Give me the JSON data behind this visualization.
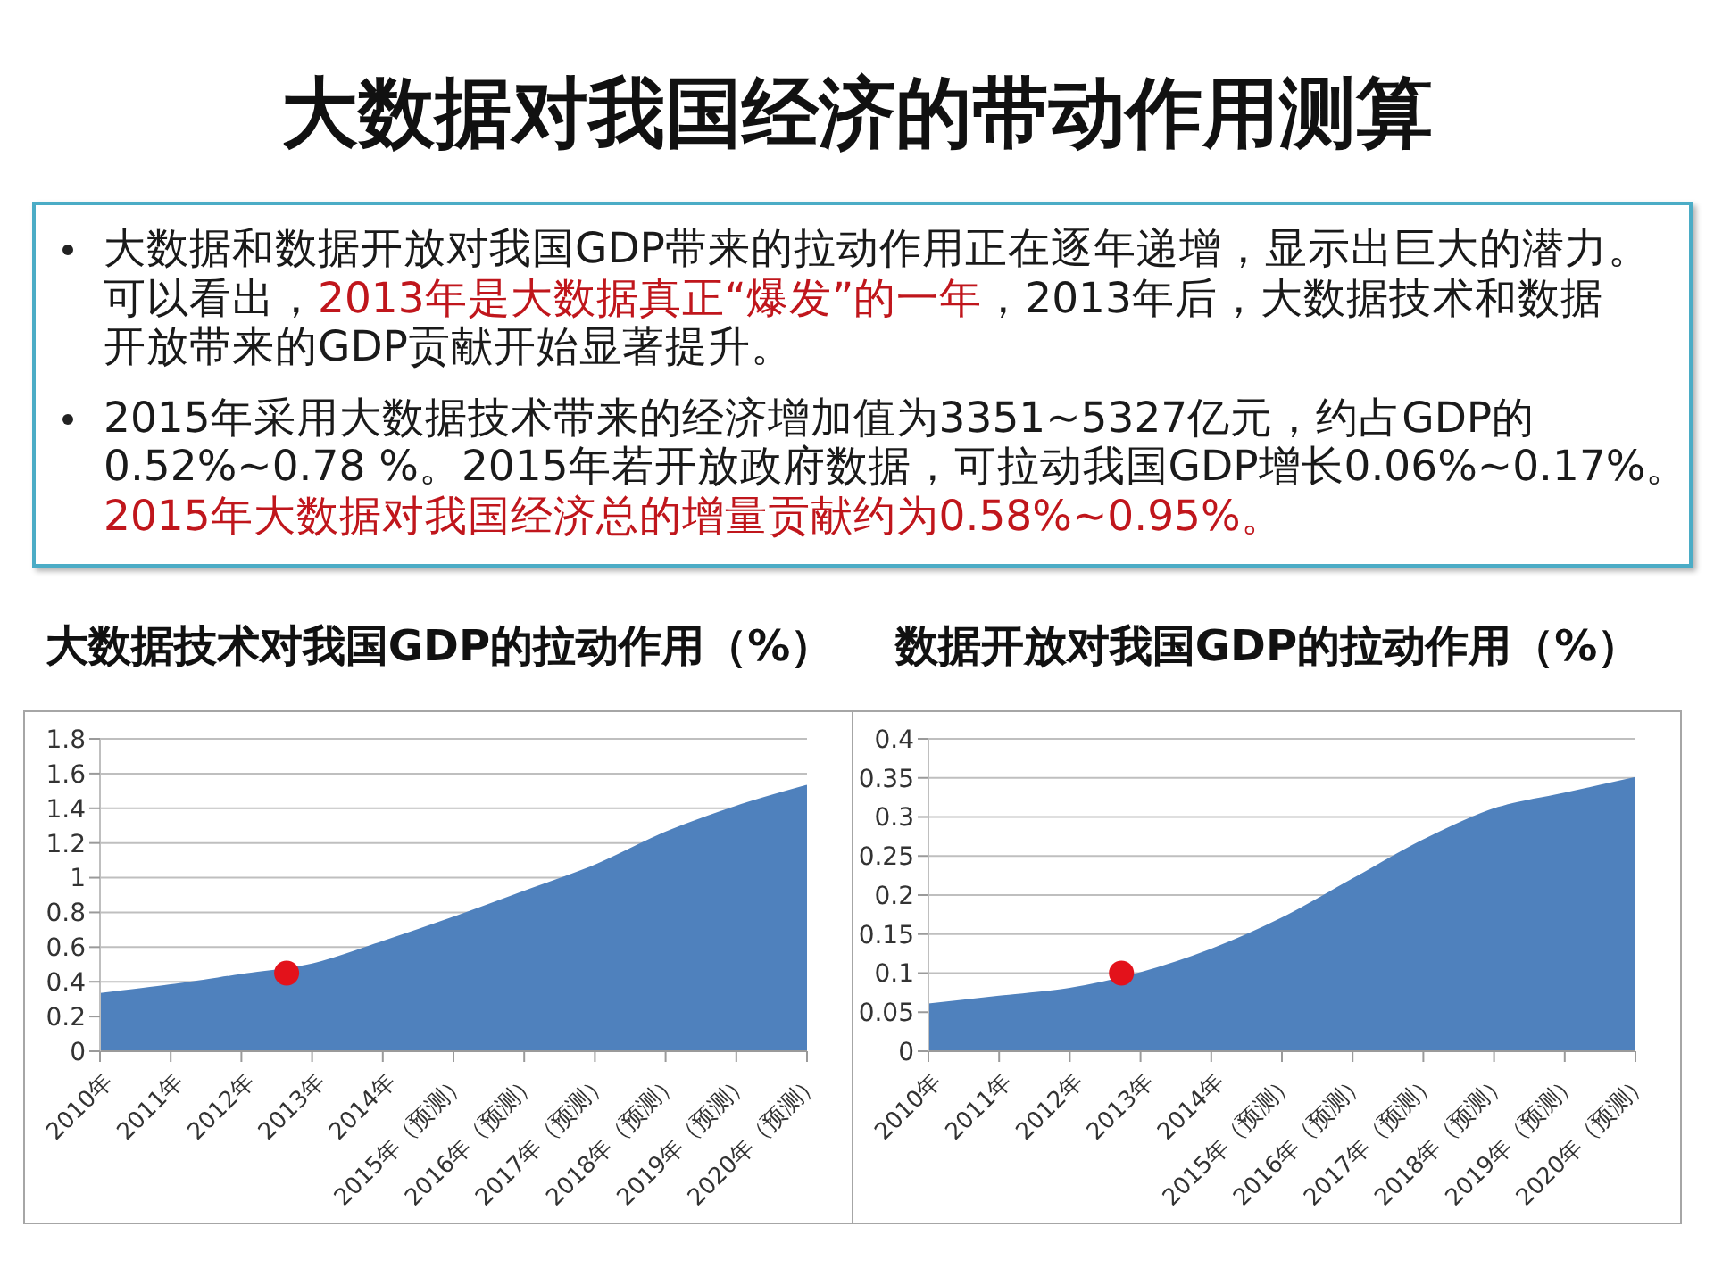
{
  "chart_data": [
    {
      "type": "other",
      "title": "大数据对我国经济的带动作用测算",
      "annotations": [
        "大数据和数据开放对我国GDP带来的拉动作用正在逐年递增，显示出巨大的潜力。",
        "可以看出，",
        "2013年是大数据真正“爆发”的一年",
        "，2013年后，大数据技术和数据",
        "开放带来的GDP贡献开始显著提升。",
        "2015年采用大数据技术带来的经济增加值为3351~5327亿元，约占GDP的",
        "0.52%~0.78 %。2015年若开放政府数据，可拉动我国GDP增长0.06%~0.17%。",
        "2015年大数据对我国经济总的增量贡献约为0.58%~0.95%。"
      ]
    },
    {
      "type": "area",
      "title": "大数据技术对我国GDP的拉动作用（%）",
      "x": [
        2010,
        2011,
        2012,
        2013,
        2014,
        2015,
        2016,
        2017,
        2018,
        2019,
        2020
      ],
      "xlim": [
        2010,
        2020
      ],
      "xticks": [
        {
          "value": 2010,
          "label": "2010年"
        },
        {
          "value": 2011,
          "label": "2011年"
        },
        {
          "value": 2012,
          "label": "2012年"
        },
        {
          "value": 2013,
          "label": "2013年"
        },
        {
          "value": 2014,
          "label": "2014年"
        },
        {
          "value": 2015,
          "label": "2015年（预测）"
        },
        {
          "value": 2016,
          "label": "2016年（预测）"
        },
        {
          "value": 2017,
          "label": "2017年（预测）"
        },
        {
          "value": 2018,
          "label": "2018年（预测）"
        },
        {
          "value": 2019,
          "label": "2019年（预测）"
        },
        {
          "value": 2020,
          "label": "2020年（预测）"
        }
      ],
      "ylim": [
        0,
        1.8
      ],
      "yticks": [
        0,
        0.2,
        0.4,
        0.6,
        0.8,
        1,
        1.2,
        1.4,
        1.6,
        1.8
      ],
      "grid": "y",
      "series": [
        {
          "color": "#4f81bd",
          "values": [
            0.33,
            0.38,
            0.44,
            0.5,
            0.63,
            0.77,
            0.92,
            1.07,
            1.26,
            1.41,
            1.53
          ]
        },
        {
          "type": "scatter",
          "x": [
            2012.64
          ],
          "values": [
            0.45
          ],
          "color": "#e3121b",
          "marker": "circle"
        }
      ]
    },
    {
      "type": "area",
      "title": "数据开放对我国GDP的拉动作用（%）",
      "x": [
        2010,
        2011,
        2012,
        2013,
        2014,
        2015,
        2016,
        2017,
        2018,
        2019,
        2020
      ],
      "xlim": [
        2010,
        2020
      ],
      "xticks": [
        {
          "value": 2010,
          "label": "2010年"
        },
        {
          "value": 2011,
          "label": "2011年"
        },
        {
          "value": 2012,
          "label": "2012年"
        },
        {
          "value": 2013,
          "label": "2013年"
        },
        {
          "value": 2014,
          "label": "2014年"
        },
        {
          "value": 2015,
          "label": "2015年（预测）"
        },
        {
          "value": 2016,
          "label": "2016年（预测）"
        },
        {
          "value": 2017,
          "label": "2017年（预测）"
        },
        {
          "value": 2018,
          "label": "2018年（预测）"
        },
        {
          "value": 2019,
          "label": "2019年（预测）"
        },
        {
          "value": 2020,
          "label": "2020年（预测）"
        }
      ],
      "ylim": [
        0,
        0.4
      ],
      "yticks": [
        0,
        0.05,
        0.1,
        0.15,
        0.2,
        0.25,
        0.3,
        0.35,
        0.4
      ],
      "grid": "y",
      "series": [
        {
          "color": "#4f81bd",
          "values": [
            0.06,
            0.07,
            0.08,
            0.1,
            0.13,
            0.17,
            0.22,
            0.27,
            0.31,
            0.33,
            0.35
          ]
        },
        {
          "type": "scatter",
          "x": [
            2012.73
          ],
          "values": [
            0.1
          ],
          "color": "#e3121b",
          "marker": "circle"
        }
      ]
    }
  ]
}
